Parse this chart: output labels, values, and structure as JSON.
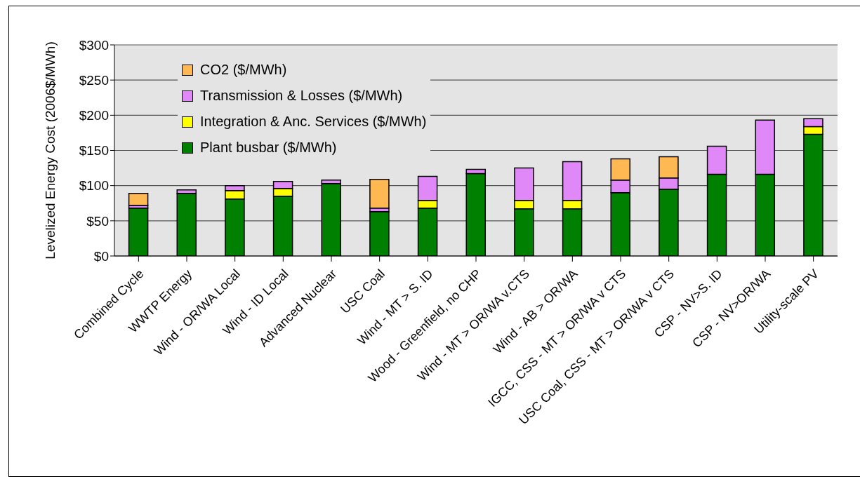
{
  "chart_data": {
    "type": "bar",
    "stacked": true,
    "ylabel": "Levelized Energy Cost (2006$/MWh)",
    "categories": [
      "Combined Cycle",
      "WWTP Energy",
      "Wind - OR/WA Local",
      "Wind - ID Local",
      "Advanced Nuclear",
      "USC Coal",
      "Wind - MT > S. ID",
      "Wood - Greenfield, no CHP",
      "Wind - MT > OR/WA v.CTS",
      "Wind - AB > OR/WA",
      "IGCC, CSS - MT > OR/WA v CTS",
      "USC Coal, CSS - MT > OR/WA v CTS",
      "CSP - NV>S. ID",
      "CSP -  NV>OR/WA",
      "Utility-scale PV"
    ],
    "series": [
      {
        "name": "Plant busbar ($/MWh)",
        "color": "#008000",
        "values": [
          68,
          89,
          81,
          85,
          103,
          63,
          68,
          117,
          67,
          67,
          90,
          95,
          116,
          116,
          173
        ]
      },
      {
        "name": "Integration & Anc. Services ($/MWh)",
        "color": "#ffff00",
        "values": [
          0,
          0,
          12,
          11,
          0,
          0,
          11,
          0,
          12,
          12,
          0,
          0,
          0,
          0,
          11
        ]
      },
      {
        "name": "Transmission & Losses ($/MWh)",
        "color": "#e088f8",
        "values": [
          4,
          5,
          7,
          10,
          5,
          5,
          34,
          6,
          46,
          55,
          18,
          16,
          40,
          77,
          11
        ]
      },
      {
        "name": "CO2 ($/MWh)",
        "color": "#ffb852",
        "values": [
          17,
          0,
          0,
          0,
          0,
          41,
          0,
          0,
          0,
          0,
          30,
          30,
          0,
          0,
          0
        ]
      }
    ],
    "ylim": [
      0,
      300
    ],
    "yticks": [
      {
        "value": 0,
        "label": "$0"
      },
      {
        "value": 50,
        "label": "$50"
      },
      {
        "value": 100,
        "label": "$100"
      },
      {
        "value": 150,
        "label": "$150"
      },
      {
        "value": 200,
        "label": "$200"
      },
      {
        "value": 250,
        "label": "$250"
      },
      {
        "value": 300,
        "label": "$300"
      }
    ],
    "grid": "y",
    "legend": "top left"
  }
}
